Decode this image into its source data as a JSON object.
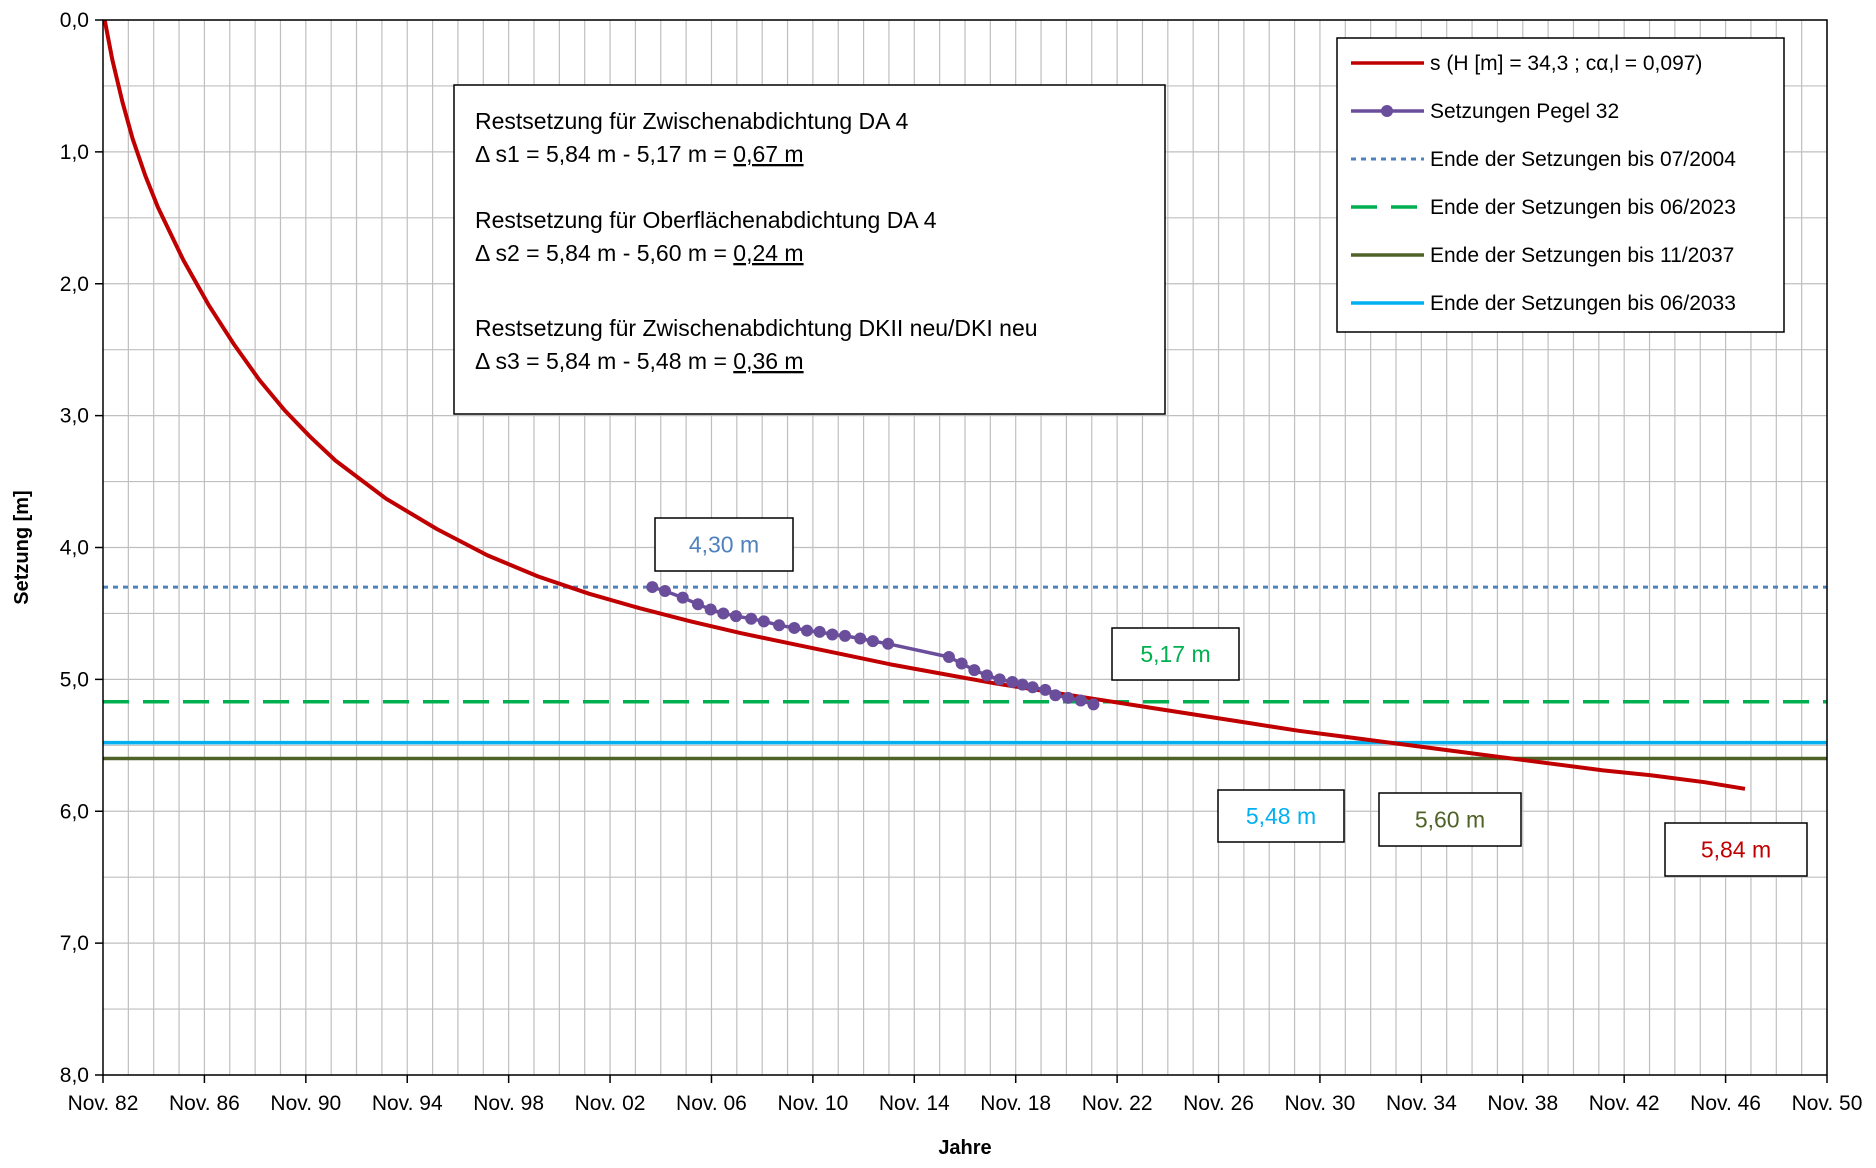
{
  "chart_data": {
    "type": "line",
    "title": "",
    "xlabel": "Jahre",
    "ylabel": "Setzung [m]",
    "x_axis": {
      "min_year": 1982.833,
      "max_year": 2050.833,
      "tick_years": [
        1982.833,
        1986.833,
        1990.833,
        1994.833,
        1998.833,
        2002.833,
        2006.833,
        2010.833,
        2014.833,
        2018.833,
        2022.833,
        2026.833,
        2030.833,
        2034.833,
        2038.833,
        2042.833,
        2046.833,
        2050.833
      ],
      "tick_labels": [
        "Nov. 82",
        "Nov. 86",
        "Nov. 90",
        "Nov. 94",
        "Nov. 98",
        "Nov. 02",
        "Nov. 06",
        "Nov. 10",
        "Nov. 14",
        "Nov. 18",
        "Nov. 22",
        "Nov. 26",
        "Nov. 30",
        "Nov. 34",
        "Nov. 38",
        "Nov. 42",
        "Nov. 46",
        "Nov. 50"
      ]
    },
    "y_axis": {
      "min": 0,
      "max": 8,
      "inverted": true,
      "tick_values": [
        0,
        1,
        2,
        3,
        4,
        5,
        6,
        7,
        8
      ],
      "tick_labels": [
        "0,0",
        "1,0",
        "2,0",
        "3,0",
        "4,0",
        "5,0",
        "6,0",
        "7,0",
        "8,0"
      ]
    },
    "grid": true,
    "legend_position": "top-right",
    "series": [
      {
        "name": "s (H [m] = 34,3 ; cα,l = 0,097)",
        "color": "#C00000",
        "style": "solid",
        "x": [
          1982.9,
          1983.2,
          1983.6,
          1984.0,
          1984.5,
          1985.0,
          1986.0,
          1987.0,
          1988.0,
          1989.0,
          1990.0,
          1991.0,
          1992.0,
          1994.0,
          1996.0,
          1998.0,
          2000.0,
          2002.0,
          2004.0,
          2006.0,
          2008.0,
          2010.0,
          2012.0,
          2014.0,
          2016.0,
          2018.0,
          2020.0,
          2022.0,
          2024.0,
          2026.0,
          2028.0,
          2030.0,
          2032.0,
          2034.0,
          2036.0,
          2038.0,
          2040.0,
          2042.0,
          2044.0,
          2046.0,
          2047.6
        ],
        "y": [
          0.0,
          0.3,
          0.62,
          0.9,
          1.18,
          1.42,
          1.82,
          2.16,
          2.46,
          2.73,
          2.96,
          3.16,
          3.34,
          3.63,
          3.86,
          4.06,
          4.22,
          4.35,
          4.46,
          4.56,
          4.65,
          4.73,
          4.81,
          4.89,
          4.96,
          5.03,
          5.09,
          5.15,
          5.21,
          5.27,
          5.33,
          5.39,
          5.44,
          5.49,
          5.54,
          5.59,
          5.64,
          5.69,
          5.73,
          5.78,
          5.83
        ]
      },
      {
        "name": "Setzungen Pegel 32",
        "color": "#6B4E9B",
        "style": "line-markers",
        "x": [
          2004.5,
          2005.0,
          2005.7,
          2006.3,
          2006.8,
          2007.3,
          2007.8,
          2008.4,
          2008.9,
          2009.5,
          2010.1,
          2010.6,
          2011.1,
          2011.6,
          2012.1,
          2012.7,
          2013.2,
          2013.8,
          2016.2,
          2016.7,
          2017.2,
          2017.7,
          2018.2,
          2018.7,
          2019.1,
          2019.5,
          2020.0,
          2020.4,
          2020.9,
          2021.4,
          2021.9
        ],
        "y": [
          4.3,
          4.33,
          4.38,
          4.43,
          4.47,
          4.5,
          4.52,
          4.54,
          4.56,
          4.59,
          4.61,
          4.63,
          4.64,
          4.66,
          4.67,
          4.69,
          4.71,
          4.73,
          4.83,
          4.88,
          4.93,
          4.97,
          5.0,
          5.02,
          5.04,
          5.06,
          5.08,
          5.12,
          5.14,
          5.16,
          5.19
        ]
      },
      {
        "name": "Ende der Setzungen bis 07/2004",
        "color": "#4F81BD",
        "style": "dotted",
        "y_value": 4.3
      },
      {
        "name": "Ende der Setzungen bis 06/2023",
        "color": "#00B050",
        "style": "dashed",
        "y_value": 5.17
      },
      {
        "name": "Ende der Setzungen bis 11/2037",
        "color": "#4F6228",
        "style": "solid",
        "y_value": 5.6
      },
      {
        "name": "Ende der Setzungen bis 06/2033",
        "color": "#00B0F0",
        "style": "solid",
        "y_value": 5.48
      }
    ],
    "annotation_box": {
      "lines": [
        {
          "prefix": "Restsetzung für Zwischenabdichtung DA 4",
          "value": ""
        },
        {
          "prefix": "Δ s1 = 5,84 m - 5,17 m = ",
          "value": "0,67 m"
        },
        {
          "prefix": "Restsetzung für Oberflächenabdichtung DA 4",
          "value": ""
        },
        {
          "prefix": "Δ s2 = 5,84 m - 5,60 m = ",
          "value": "0,24 m"
        },
        {
          "prefix": "Restsetzung für Zwischenabdichtung DKII neu/DKI neu",
          "value": ""
        },
        {
          "prefix": "Δ s3 = 5,84 m - 5,48 m = ",
          "value": "0,36 m"
        }
      ]
    },
    "value_labels": [
      {
        "text": "4,30 m",
        "color": "#4F81BD"
      },
      {
        "text": "5,17 m",
        "color": "#00B050"
      },
      {
        "text": "5,48 m",
        "color": "#00B0F0"
      },
      {
        "text": "5,60 m",
        "color": "#4F6228"
      },
      {
        "text": "5,84 m",
        "color": "#C00000"
      }
    ]
  }
}
